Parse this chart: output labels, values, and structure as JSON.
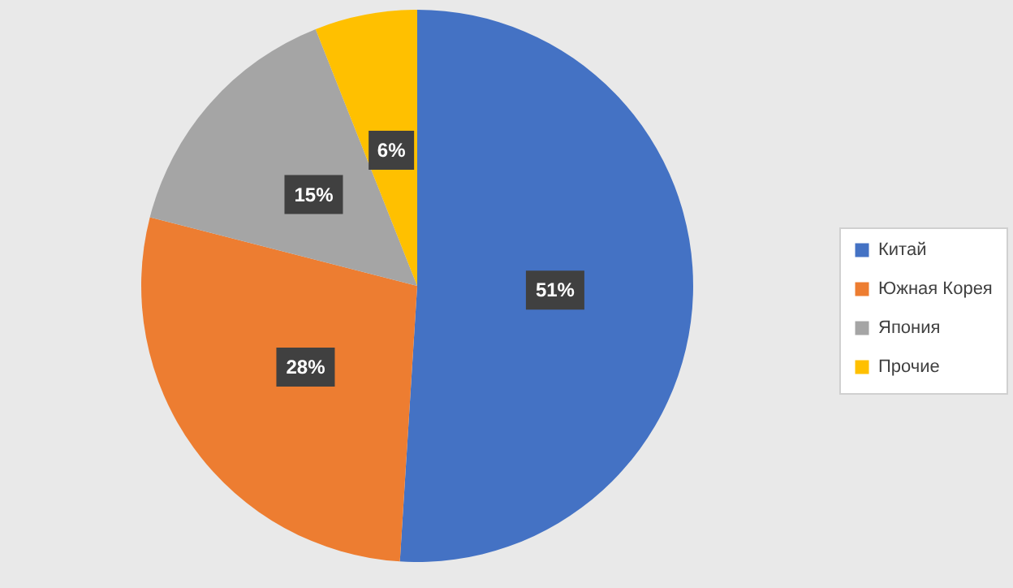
{
  "chart_data": {
    "type": "pie",
    "categories": [
      "Китай",
      "Южная Корея",
      "Япония",
      "Прочие"
    ],
    "values": [
      51,
      28,
      15,
      6
    ],
    "colors": [
      "#4472c4",
      "#ed7d31",
      "#a5a5a5",
      "#ffc000"
    ],
    "value_labels": [
      "51%",
      "28%",
      "15%",
      "6%"
    ],
    "legend": "right"
  }
}
